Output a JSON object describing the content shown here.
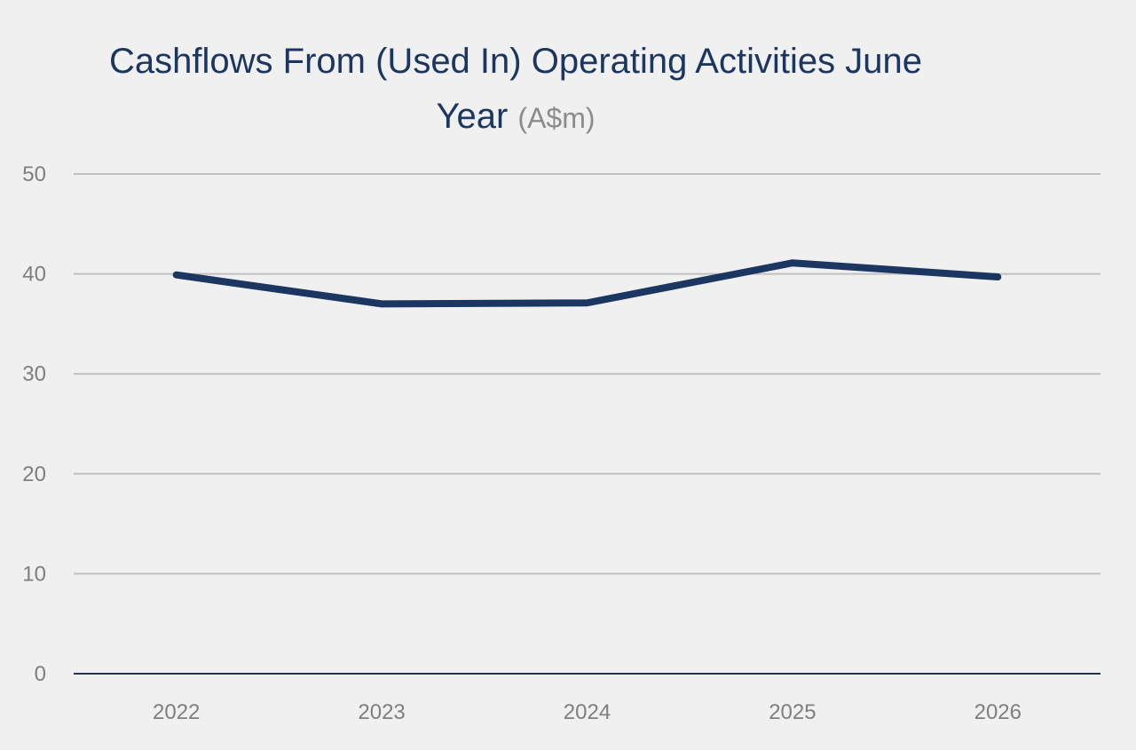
{
  "chart_data": {
    "type": "line",
    "title_line1": "Cashflows From (Used In) Operating Activities June",
    "title_line2": "Year",
    "unit": "(A$m)",
    "xlabel": "",
    "ylabel": "",
    "categories": [
      "2022",
      "2023",
      "2024",
      "2025",
      "2026"
    ],
    "series": [
      {
        "values": [
          39.9,
          37.0,
          37.1,
          41.1,
          39.7
        ]
      }
    ],
    "ylim": [
      0,
      50
    ],
    "yticks": [
      0,
      10,
      20,
      30,
      40,
      50
    ],
    "grid": true,
    "legend": "none",
    "colors": {
      "line": "#1b3660",
      "grid": "#c0c0c0",
      "axis": "#1b3660",
      "tick_text": "#7f7f7f",
      "unit_text": "#8c8c8c",
      "background": "#f0f0f0"
    }
  }
}
